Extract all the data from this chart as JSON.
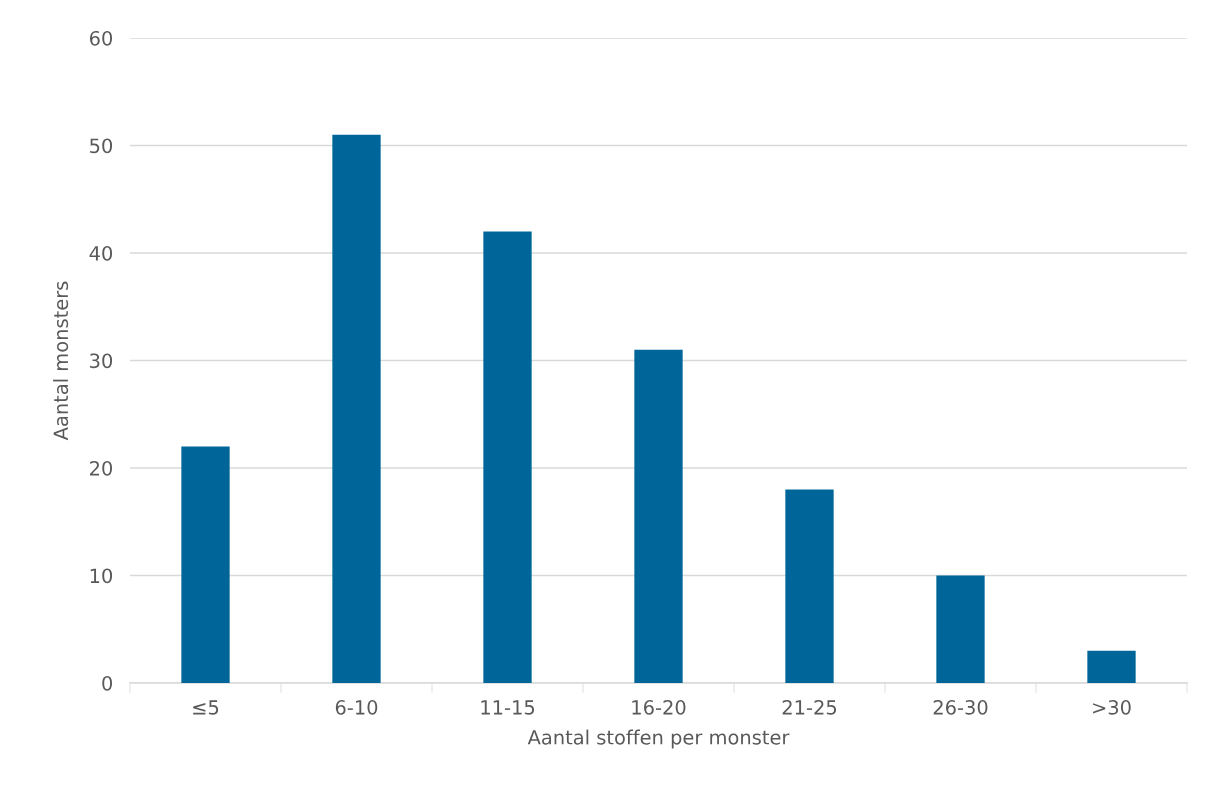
{
  "chart_data": {
    "type": "bar",
    "xlabel": "Aantal stoffen per monster",
    "ylabel": "Aantal monsters",
    "categories": [
      "≤5",
      "6-10",
      "11-15",
      "16-20",
      "21-25",
      "26-30",
      ">30"
    ],
    "values": [
      22,
      51,
      42,
      31,
      18,
      10,
      3
    ],
    "color": "#006699",
    "ylim": [
      0,
      60
    ],
    "yticks": [
      0,
      10,
      20,
      30,
      40,
      50,
      60
    ],
    "grid": "y",
    "legend": false
  }
}
